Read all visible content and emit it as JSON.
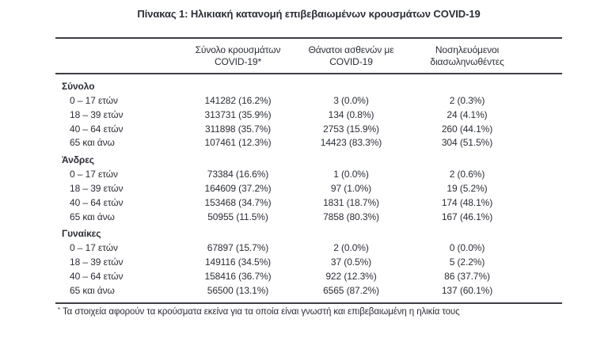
{
  "title": "Πίνακας 1: Ηλικιακή κατανομή επιβεβαιωμένων κρουσμάτων COVID-19",
  "table": {
    "columns": [
      {
        "line1": "Σύνολο κρουσμάτων",
        "line2": "COVID-19*"
      },
      {
        "line1": "Θάνατοι ασθενών με",
        "line2": "COVID-19"
      },
      {
        "line1": "Νοσηλευόμενοι",
        "line2": "διασωληνωθέντες"
      }
    ],
    "sections": [
      {
        "label": "Σύνολο",
        "rows": [
          {
            "age": "0 – 17 ετών",
            "cases": "141282 (16.2%)",
            "deaths": "3 (0.0%)",
            "intubated": "2 (0.3%)"
          },
          {
            "age": "18 – 39 ετών",
            "cases": "313731 (35.9%)",
            "deaths": "134 (0.8%)",
            "intubated": "24 (4.1%)"
          },
          {
            "age": "40 – 64 ετών",
            "cases": "311898 (35.7%)",
            "deaths": "2753 (15.9%)",
            "intubated": "260 (44.1%)"
          },
          {
            "age": "65 και άνω",
            "cases": "107461 (12.3%)",
            "deaths": "14423 (83.3%)",
            "intubated": "304 (51.5%)"
          }
        ]
      },
      {
        "label": "Άνδρες",
        "rows": [
          {
            "age": "0 – 17 ετών",
            "cases": "73384 (16.6%)",
            "deaths": "1 (0.0%)",
            "intubated": "2 (0.6%)"
          },
          {
            "age": "18 – 39 ετών",
            "cases": "164609 (37.2%)",
            "deaths": "97 (1.0%)",
            "intubated": "19 (5.2%)"
          },
          {
            "age": "40 – 64 ετών",
            "cases": "153468 (34.7%)",
            "deaths": "1831 (18.7%)",
            "intubated": "174 (48.1%)"
          },
          {
            "age": "65 και άνω",
            "cases": "50955 (11.5%)",
            "deaths": "7858 (80.3%)",
            "intubated": "167 (46.1%)"
          }
        ]
      },
      {
        "label": "Γυναίκες",
        "rows": [
          {
            "age": "0 – 17 ετών",
            "cases": "67897 (15.7%)",
            "deaths": "2 (0.0%)",
            "intubated": "0 (0.0%)"
          },
          {
            "age": "18 – 39 ετών",
            "cases": "149116 (34.5%)",
            "deaths": "37 (0.5%)",
            "intubated": "5 (2.2%)"
          },
          {
            "age": "40 – 64 ετών",
            "cases": "158416 (36.7%)",
            "deaths": "922 (12.3%)",
            "intubated": "86 (37.7%)"
          },
          {
            "age": "65 και άνω",
            "cases": "56500 (13.1%)",
            "deaths": "6565 (87.2%)",
            "intubated": "137 (60.1%)"
          }
        ]
      }
    ]
  },
  "footnote": {
    "marker": "*",
    "text": "Τα στοιχεία αφορούν τα κρούσματα εκείνα για τα οποία είναι γνωστή και επιβεβαιωμένη η ηλικία τους"
  },
  "colors": {
    "text": "#2b2e36",
    "rule": "#3d3e44",
    "background": "#ffffff"
  }
}
